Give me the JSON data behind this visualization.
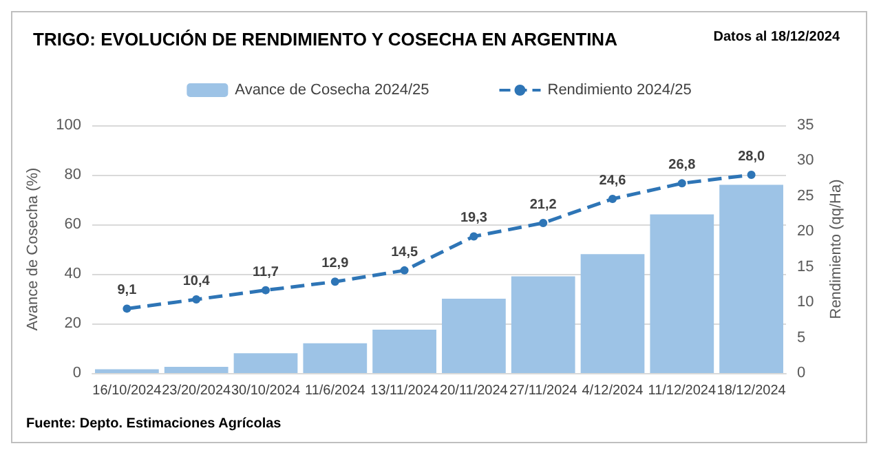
{
  "chart_data": {
    "type": "bar",
    "title": "TRIGO: EVOLUCIÓN DE RENDIMIENTO Y COSECHA EN ARGENTINA",
    "subtitle": "Datos al 18/12/2024",
    "ylabel": "Avance de Cosecha (%)",
    "y2label": "Rendimiento (qq/Ha)",
    "categories": [
      "16/10/2024",
      "23/20/2024",
      "30/10/2024",
      "11/6/2024",
      "13/11/2024",
      "20/11/2024",
      "27/11/2024",
      "4/12/2024",
      "11/12/2024",
      "18/12/2024"
    ],
    "series": [
      {
        "name": "Avance de Cosecha 2024/25",
        "color": "#9dc3e6",
        "values": [
          1.5,
          2.5,
          8,
          12,
          17.5,
          30,
          39,
          48,
          64,
          76
        ]
      },
      {
        "name": "Rendimiento 2024/25",
        "type": "line",
        "axis": "y2",
        "color": "#2e75b6",
        "marker": "circle",
        "line_style": "dashed",
        "value_labels": [
          "9,1",
          "10,4",
          "11,7",
          "12,9",
          "14,5",
          "19,3",
          "21,2",
          "24,6",
          "26,8",
          "28,0"
        ],
        "values": [
          9.1,
          10.4,
          11.7,
          12.9,
          14.5,
          19.3,
          21.2,
          24.6,
          26.8,
          28.0
        ]
      }
    ],
    "ylim": [
      0,
      100
    ],
    "yticks": [
      0,
      20,
      40,
      60,
      80,
      100
    ],
    "y2lim": [
      0,
      35
    ],
    "y2ticks": [
      0,
      5,
      10,
      15,
      20,
      25,
      30,
      35
    ],
    "grid": "y",
    "legend": "top",
    "annotations": [
      "Fuente: Depto. Estimaciones Agrícolas"
    ]
  }
}
